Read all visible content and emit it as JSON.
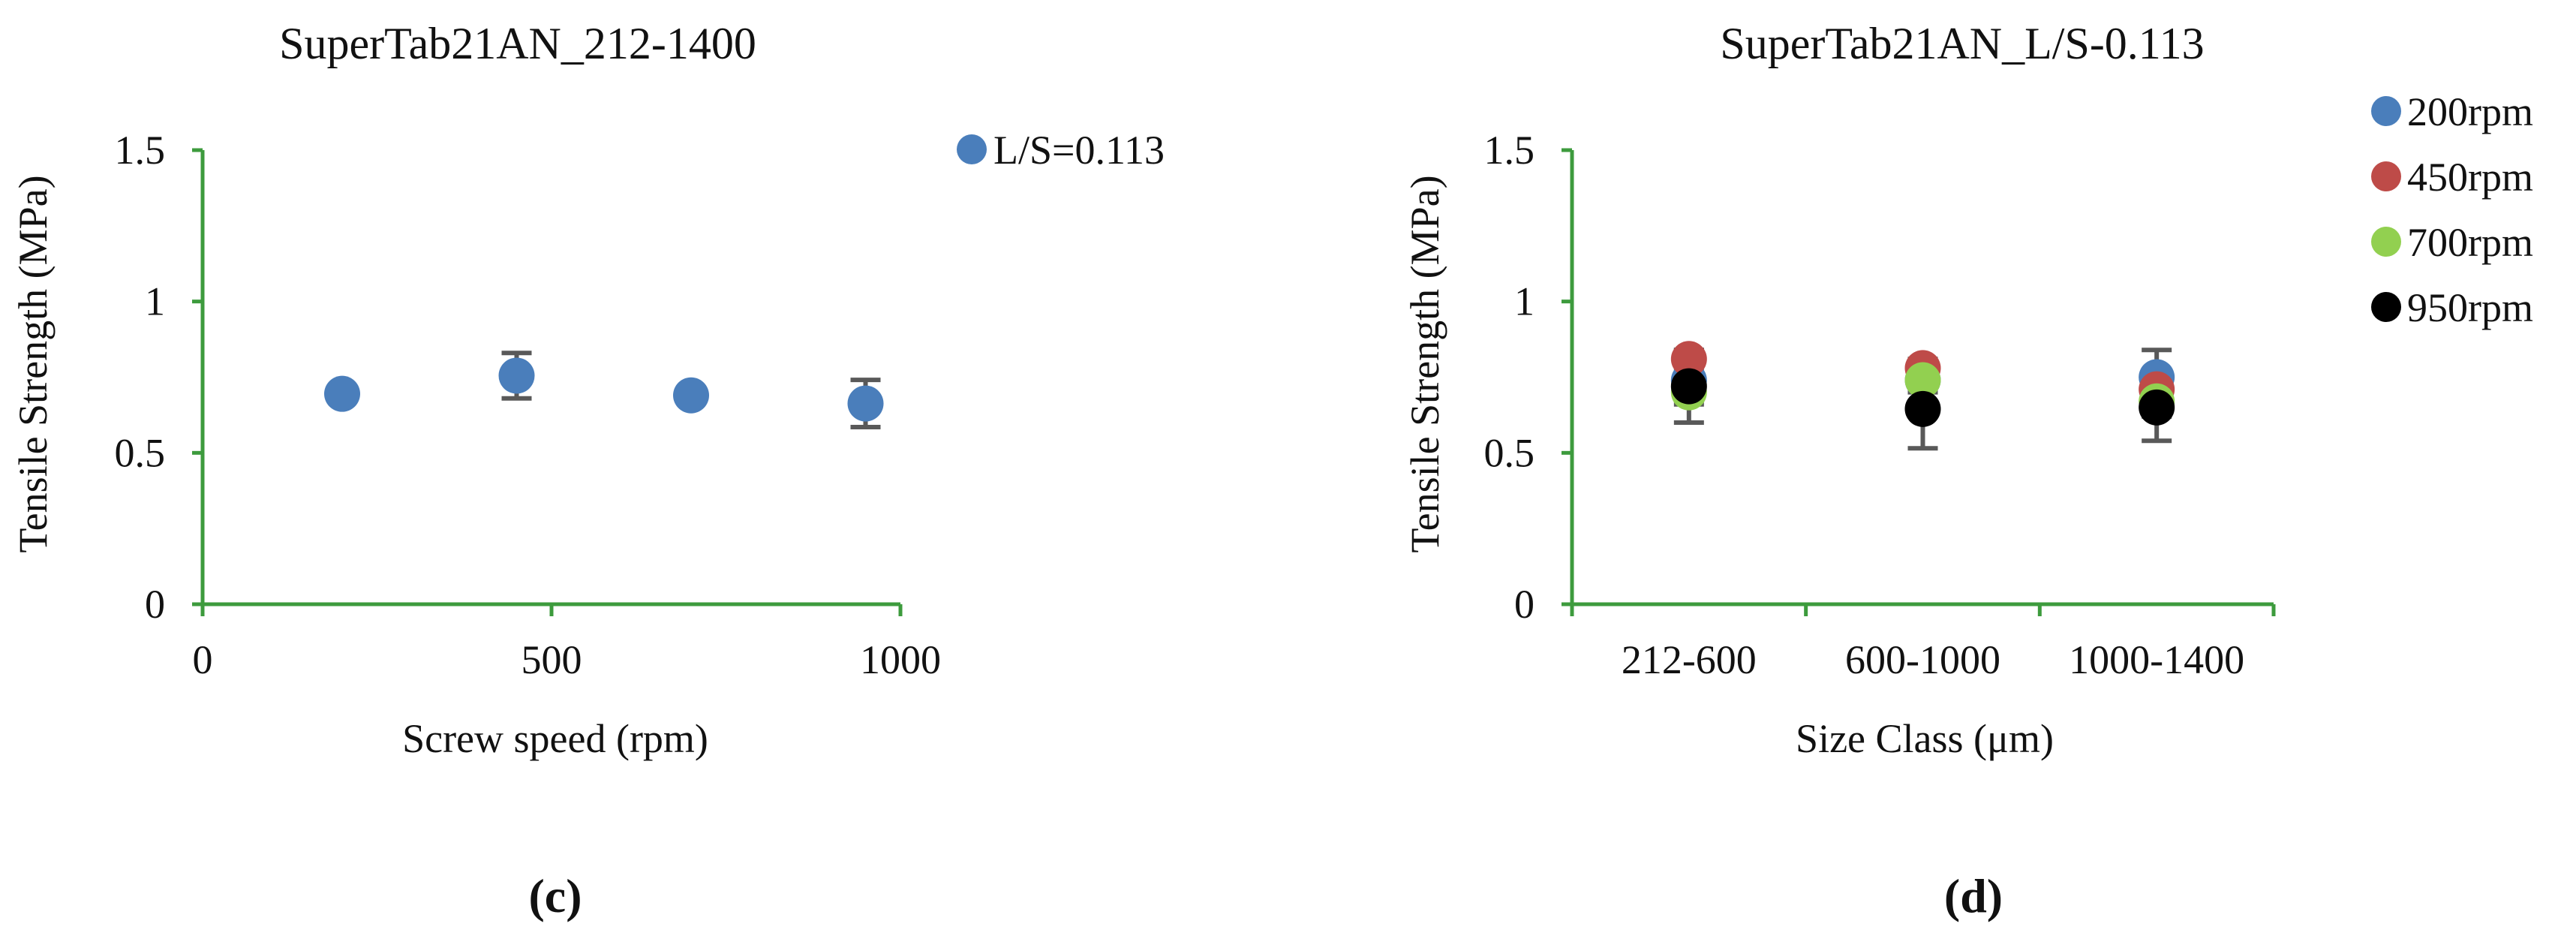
{
  "colors": {
    "axis": "#3d9b3d",
    "error_bar": "#595959",
    "text": "#111111"
  },
  "chart_data": [
    {
      "type": "scatter",
      "panel_label": "(c)",
      "title": "SuperTab21AN_212-1400",
      "xlabel": "Screw speed (rpm)",
      "ylabel": "Tensile Strength (MPa)",
      "xlim": [
        0,
        1000
      ],
      "ylim": [
        0,
        1.5
      ],
      "xticks": [
        0,
        500,
        1000
      ],
      "xtick_labels": [
        "0",
        "500",
        "1000"
      ],
      "yticks": [
        0,
        0.5,
        1,
        1.5
      ],
      "ytick_labels": [
        "0",
        "0.5",
        "1",
        "1.5"
      ],
      "grid": false,
      "legend_position": "top-right",
      "series": [
        {
          "name": "L/S=0.113",
          "color": "#4a7ebb",
          "x": [
            200,
            450,
            700,
            950
          ],
          "y": [
            0.695,
            0.755,
            0.69,
            0.663
          ],
          "err": [
            0.02,
            0.075,
            0.015,
            0.078
          ]
        }
      ]
    },
    {
      "type": "scatter",
      "panel_label": "(d)",
      "title": "SuperTab21AN_L/S-0.113",
      "xlabel": "Size Class (μm)",
      "ylabel": "Tensile Strength (MPa)",
      "categories": [
        "212-600",
        "600-1000",
        "1000-1400"
      ],
      "ylim": [
        0,
        1.5
      ],
      "yticks": [
        0,
        0.5,
        1,
        1.5
      ],
      "ytick_labels": [
        "0",
        "0.5",
        "1",
        "1.5"
      ],
      "grid": false,
      "legend_position": "right",
      "series": [
        {
          "name": "200rpm",
          "color": "#4a7ebb",
          "values": [
            0.74,
            0.74,
            0.75
          ],
          "err": [
            0.06,
            0.04,
            0.09
          ]
        },
        {
          "name": "450rpm",
          "color": "#be4b48",
          "values": [
            0.81,
            0.78,
            0.71
          ],
          "err": [
            0.03,
            0.03,
            0.06
          ]
        },
        {
          "name": "700rpm",
          "color": "#92d050",
          "values": [
            0.7,
            0.74,
            0.67
          ],
          "err": [
            0.04,
            0.03,
            0.05
          ]
        },
        {
          "name": "950rpm",
          "color": "#000000",
          "values": [
            0.72,
            0.645,
            0.65
          ],
          "err": [
            0.12,
            0.13,
            0.11
          ]
        }
      ]
    }
  ]
}
